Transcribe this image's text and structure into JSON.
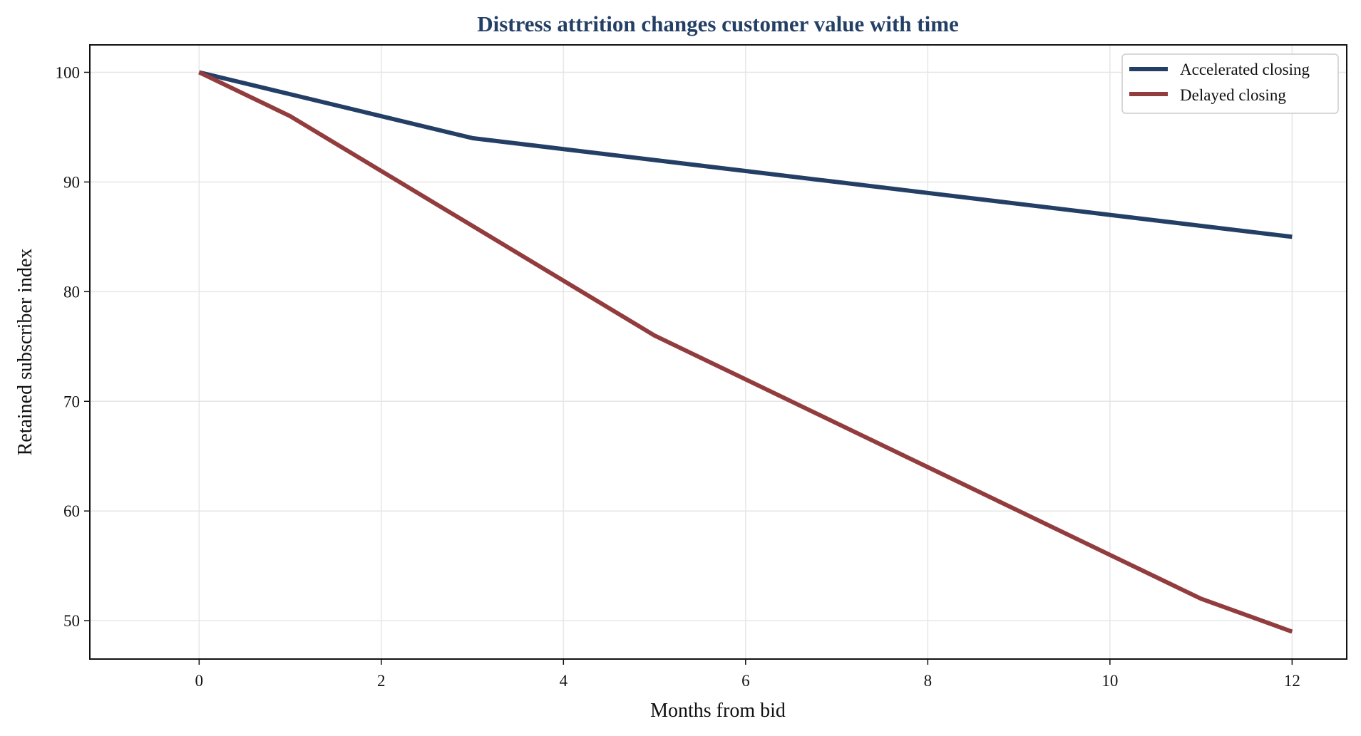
{
  "chart_data": {
    "type": "line",
    "title": "Distress attrition changes customer value with time",
    "xlabel": "Months from bid",
    "ylabel": "Retained subscriber index",
    "xlim": [
      -1.2,
      12.6
    ],
    "ylim": [
      46.5,
      102.5
    ],
    "xticks": [
      0,
      2,
      4,
      6,
      8,
      10,
      12
    ],
    "yticks": [
      50,
      60,
      70,
      80,
      90,
      100
    ],
    "grid": true,
    "legend_position": "top-right",
    "series": [
      {
        "name": "Accelerated closing",
        "color": "#243f66",
        "x": [
          0,
          1,
          2,
          3,
          4,
          5,
          6,
          7,
          8,
          9,
          10,
          11,
          12
        ],
        "y": [
          100,
          98,
          96,
          94,
          93,
          92,
          91,
          90,
          89,
          88,
          87,
          86,
          85
        ]
      },
      {
        "name": "Delayed closing",
        "color": "#923c3e",
        "x": [
          0,
          1,
          2,
          3,
          4,
          5,
          6,
          7,
          8,
          9,
          10,
          11,
          12
        ],
        "y": [
          100,
          96,
          91,
          86,
          81,
          76,
          72,
          68,
          64,
          60,
          56,
          52,
          49
        ]
      }
    ]
  },
  "colors": {
    "title": "#243f66",
    "grid": "#e6e6e6",
    "axis": "#111111"
  }
}
